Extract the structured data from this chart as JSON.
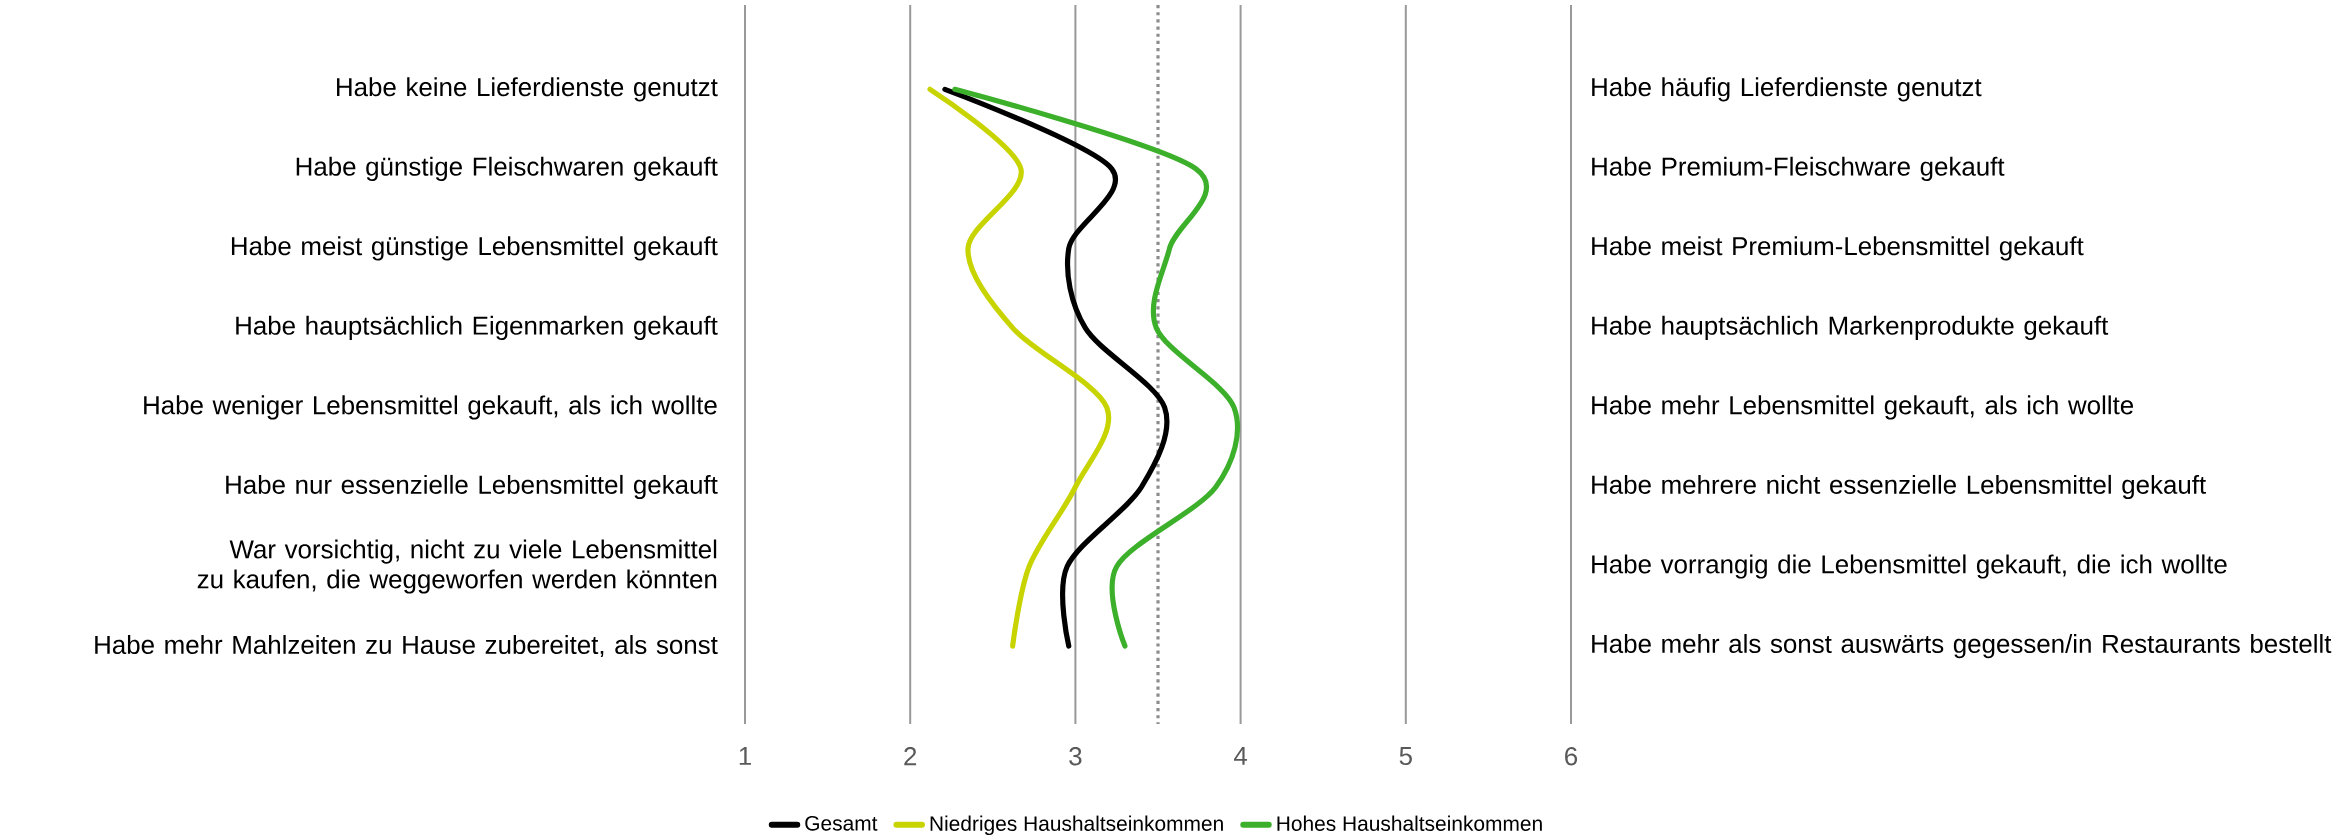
{
  "chart_data": {
    "type": "line",
    "orientation": "horizontal",
    "categories": [
      "Habe keine Lieferdienste genutzt",
      "Habe günstige Fleischwaren gekauft",
      "Habe meist günstige Lebensmittel gekauft",
      "Habe hauptsächlich Eigenmarken gekauft",
      "Habe weniger Lebensmittel gekauft, als ich wollte",
      "Habe nur essenzielle Lebensmittel gekauft",
      "War vorsichtig, nicht zu viele Lebensmittel zu kaufen, die weggeworfen werden könnten",
      "Habe mehr Mahlzeiten zu Hause zubereitet, als sonst"
    ],
    "y2_categories": [
      "Habe häufig Lieferdienste genutzt",
      "Habe Premium-Fleischware gekauft",
      "Habe meist Premium-Lebensmittel gekauft",
      "Habe hauptsächlich Markenprodukte gekauft",
      "Habe mehr Lebensmittel gekauft, als ich wollte",
      "Habe mehrere nicht essenzielle Lebensmittel gekauft",
      "Habe vorrangig die Lebensmittel gekauft, die ich wollte",
      "Habe mehr als sonst auswärts gegessen/in Restaurants bestellt"
    ],
    "series": [
      {
        "name": "Gesamt",
        "color": "#000000",
        "values": [
          2.21,
          3.22,
          2.96,
          3.06,
          3.54,
          3.4,
          2.95,
          2.96
        ]
      },
      {
        "name": "Niedriges Haushaltseinkommen",
        "color": "#c8d400",
        "values": [
          2.12,
          2.67,
          2.35,
          2.62,
          3.19,
          3.0,
          2.72,
          2.62
        ]
      },
      {
        "name": "Hohes Haushaltseinkommen",
        "color": "#3cb02a",
        "values": [
          2.27,
          3.73,
          3.57,
          3.49,
          3.96,
          3.85,
          3.25,
          3.3
        ]
      }
    ],
    "xlim": [
      1,
      6
    ],
    "xticks": [
      1,
      2,
      3,
      4,
      5,
      6
    ],
    "ref_lines": [
      {
        "axis": "x",
        "value": 3.5,
        "color": "#8c8c8c",
        "line_style": "dotted"
      }
    ],
    "grid": "x",
    "legend": "bottom",
    "line_style": "solid"
  }
}
